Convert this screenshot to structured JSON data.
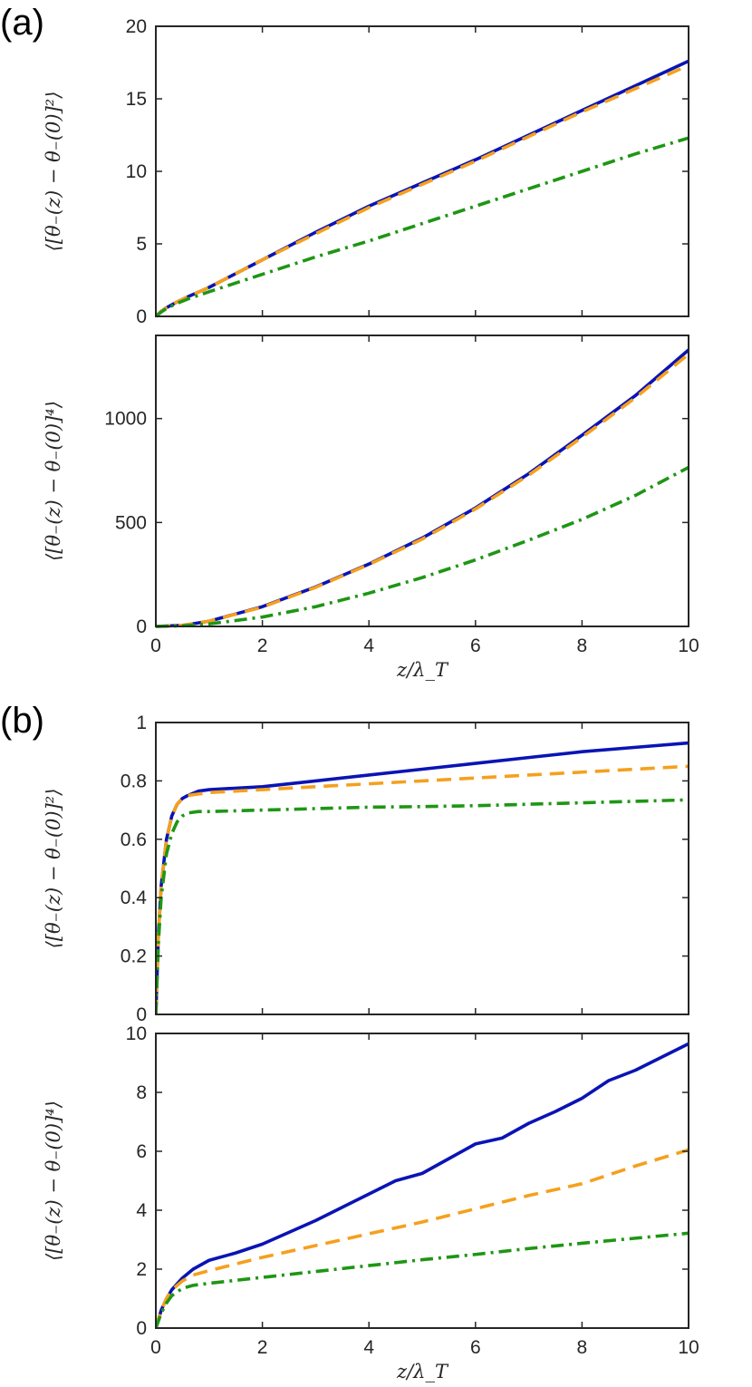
{
  "figure": {
    "panel_labels": [
      "(a)",
      "(b)"
    ],
    "xlabel": "z/λ_T",
    "ylabel_2nd": "⟨[θ₋(z) − θ₋(0)]²⟩",
    "ylabel_4th": "⟨[θ₋(z) − θ₋(0)]⁴⟩"
  },
  "colors": {
    "simulation": "#0a14b4",
    "approx_dashed": "#f5a01e",
    "approx_dashdot": "#1e9614",
    "axes": "#262626"
  },
  "chart_data": [
    {
      "type": "line",
      "panel": "(a)",
      "xlabel": "",
      "ylabel": "⟨[θ₋(z) − θ₋(0)]²⟩",
      "xlim": [
        0,
        10
      ],
      "ylim": [
        0,
        20
      ],
      "xticks": [],
      "yticks": [
        "0",
        "5",
        "10",
        "15",
        "20"
      ],
      "series": [
        {
          "style": "solid",
          "color": "#0a14b4",
          "x": [
            0,
            0.1,
            0.2,
            0.4,
            0.6,
            1,
            2,
            3,
            4,
            5,
            6,
            7,
            8,
            9,
            10
          ],
          "y": [
            0,
            0.35,
            0.6,
            1.0,
            1.35,
            2.0,
            3.9,
            5.8,
            7.6,
            9.2,
            10.8,
            12.5,
            14.2,
            15.9,
            17.6
          ]
        },
        {
          "style": "dashed",
          "color": "#f5a01e",
          "x": [
            0,
            0.1,
            0.2,
            0.4,
            0.6,
            1,
            2,
            3,
            4,
            5,
            6,
            7,
            8,
            9,
            10
          ],
          "y": [
            0,
            0.35,
            0.6,
            1.0,
            1.35,
            2.0,
            3.9,
            5.7,
            7.5,
            9.1,
            10.7,
            12.4,
            14.1,
            15.7,
            17.3
          ]
        },
        {
          "style": "dashdot",
          "color": "#1e9614",
          "x": [
            0,
            0.1,
            0.2,
            0.4,
            0.6,
            1,
            2,
            3,
            4,
            5,
            6,
            7,
            8,
            9,
            10
          ],
          "y": [
            0,
            0.3,
            0.55,
            0.9,
            1.2,
            1.7,
            2.9,
            4.1,
            5.2,
            6.4,
            7.6,
            8.8,
            10.0,
            11.2,
            12.3
          ]
        }
      ]
    },
    {
      "type": "line",
      "panel": "(a)",
      "xlabel": "z/λ_T",
      "ylabel": "⟨[θ₋(z) − θ₋(0)]⁴⟩",
      "xlim": [
        0,
        10
      ],
      "ylim": [
        0,
        1400
      ],
      "xticks": [
        "0",
        "2",
        "4",
        "6",
        "8",
        "10"
      ],
      "yticks": [
        "0",
        "500",
        "1000"
      ],
      "series": [
        {
          "style": "solid",
          "color": "#0a14b4",
          "x": [
            0,
            0.5,
            1,
            2,
            3,
            4,
            5,
            6,
            7,
            8,
            9,
            10
          ],
          "y": [
            0,
            5,
            25,
            95,
            190,
            300,
            425,
            570,
            735,
            920,
            1110,
            1330
          ]
        },
        {
          "style": "dashed",
          "color": "#f5a01e",
          "x": [
            0,
            0.5,
            1,
            2,
            3,
            4,
            5,
            6,
            7,
            8,
            9,
            10
          ],
          "y": [
            0,
            5,
            25,
            93,
            188,
            298,
            420,
            565,
            728,
            910,
            1100,
            1310
          ]
        },
        {
          "style": "dashdot",
          "color": "#1e9614",
          "x": [
            0,
            0.5,
            1,
            2,
            3,
            4,
            5,
            6,
            7,
            8,
            9,
            10
          ],
          "y": [
            0,
            3,
            12,
            45,
            95,
            160,
            235,
            320,
            415,
            515,
            630,
            765
          ]
        }
      ]
    },
    {
      "type": "line",
      "panel": "(b)",
      "xlabel": "",
      "ylabel": "⟨[θ₋(z) − θ₋(0)]²⟩",
      "xlim": [
        0,
        10
      ],
      "ylim": [
        0,
        1
      ],
      "xticks": [],
      "yticks": [
        "0",
        "0.2",
        "0.4",
        "0.6",
        "0.8",
        "1"
      ],
      "series": [
        {
          "style": "solid",
          "color": "#0a14b4",
          "x": [
            0,
            0.05,
            0.1,
            0.2,
            0.3,
            0.4,
            0.5,
            0.6,
            0.8,
            1,
            2,
            3,
            4,
            5,
            6,
            7,
            8,
            9,
            10
          ],
          "y": [
            0,
            0.28,
            0.44,
            0.6,
            0.68,
            0.72,
            0.74,
            0.75,
            0.765,
            0.77,
            0.78,
            0.8,
            0.82,
            0.84,
            0.86,
            0.88,
            0.9,
            0.915,
            0.93
          ]
        },
        {
          "style": "dashed",
          "color": "#f5a01e",
          "x": [
            0,
            0.05,
            0.1,
            0.2,
            0.3,
            0.4,
            0.5,
            0.6,
            0.8,
            1,
            2,
            3,
            4,
            5,
            6,
            7,
            8,
            9,
            10
          ],
          "y": [
            0,
            0.28,
            0.44,
            0.6,
            0.68,
            0.72,
            0.74,
            0.75,
            0.755,
            0.76,
            0.77,
            0.78,
            0.79,
            0.8,
            0.81,
            0.82,
            0.83,
            0.84,
            0.85
          ]
        },
        {
          "style": "dashdot",
          "color": "#1e9614",
          "x": [
            0,
            0.05,
            0.1,
            0.2,
            0.3,
            0.4,
            0.5,
            0.6,
            0.8,
            1,
            2,
            3,
            4,
            5,
            6,
            7,
            8,
            9,
            10
          ],
          "y": [
            0,
            0.25,
            0.4,
            0.55,
            0.62,
            0.66,
            0.68,
            0.69,
            0.695,
            0.695,
            0.7,
            0.705,
            0.71,
            0.712,
            0.715,
            0.72,
            0.725,
            0.73,
            0.735
          ]
        }
      ]
    },
    {
      "type": "line",
      "panel": "(b)",
      "xlabel": "z/λ_T",
      "ylabel": "⟨[θ₋(z) − θ₋(0)]⁴⟩",
      "xlim": [
        0,
        10
      ],
      "ylim": [
        0,
        10
      ],
      "xticks": [
        "0",
        "2",
        "4",
        "6",
        "8",
        "10"
      ],
      "yticks": [
        "0",
        "2",
        "4",
        "6",
        "8",
        "10"
      ],
      "series": [
        {
          "style": "solid",
          "color": "#0a14b4",
          "x": [
            0,
            0.1,
            0.2,
            0.3,
            0.5,
            0.7,
            1,
            1.5,
            2,
            2.5,
            3,
            3.5,
            4,
            4.5,
            5,
            5.5,
            6,
            6.5,
            7,
            7.5,
            8,
            8.5,
            9,
            9.5,
            10
          ],
          "y": [
            0,
            0.6,
            1.0,
            1.3,
            1.7,
            2.0,
            2.3,
            2.55,
            2.85,
            3.25,
            3.65,
            4.1,
            4.55,
            5.0,
            5.25,
            5.75,
            6.25,
            6.45,
            6.95,
            7.35,
            7.8,
            8.4,
            8.75,
            9.2,
            9.65
          ]
        },
        {
          "style": "dashed",
          "color": "#f5a01e",
          "x": [
            0,
            0.1,
            0.2,
            0.3,
            0.5,
            0.7,
            1,
            2,
            3,
            4,
            5,
            6,
            7,
            8,
            9,
            10
          ],
          "y": [
            0,
            0.6,
            1.0,
            1.3,
            1.6,
            1.8,
            1.95,
            2.4,
            2.8,
            3.2,
            3.6,
            4.05,
            4.5,
            4.9,
            5.5,
            6.05
          ]
        },
        {
          "style": "dashdot",
          "color": "#1e9614",
          "x": [
            0,
            0.1,
            0.2,
            0.3,
            0.5,
            0.7,
            1,
            2,
            3,
            4,
            5,
            6,
            7,
            8,
            9,
            10
          ],
          "y": [
            0,
            0.5,
            0.85,
            1.1,
            1.35,
            1.45,
            1.52,
            1.72,
            1.92,
            2.12,
            2.32,
            2.5,
            2.7,
            2.88,
            3.05,
            3.22
          ]
        }
      ]
    }
  ]
}
